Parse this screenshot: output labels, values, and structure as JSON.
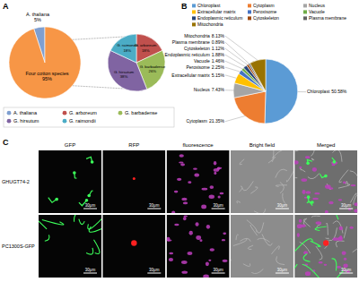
{
  "chart_data": [
    {
      "type": "pie",
      "title": "A",
      "categories": [
        "A. thaliana",
        "Four cotton species"
      ],
      "values": [
        5,
        95
      ],
      "value_labels": [
        "5%",
        "95%"
      ],
      "colors": [
        "#7f9fd0",
        "#f79646"
      ],
      "data_labels": true,
      "legend": "bottom"
    },
    {
      "type": "pie",
      "categories": [
        "G. arboreum",
        "G. barbadense",
        "G. hirsutum",
        "G. raimondii"
      ],
      "values": [
        18,
        26,
        38,
        18
      ],
      "value_labels": [
        "18%",
        "26%",
        "38%",
        "18%"
      ],
      "colors": [
        "#c0504d",
        "#9bbb59",
        "#8064a2",
        "#4bacc6"
      ],
      "data_labels": true
    },
    {
      "type": "pie",
      "title": "B",
      "categories": [
        "Chloroplast",
        "Cytoplasm",
        "Nucleus",
        "Extracellular matrix",
        "Peroxisome",
        "Vacuole",
        "Endoplasmic reticulum",
        "Cytoskeleton",
        "Plasma membrane",
        "Mitochondria"
      ],
      "values": [
        50.58,
        21.35,
        7.43,
        5.15,
        2.25,
        1.46,
        1.88,
        1.12,
        0.89,
        8.13
      ],
      "value_labels": [
        "50.58%",
        "21.35%",
        "7.43%",
        "5.15%",
        "2.25%",
        "1.46%",
        "1.88%",
        "1.12%",
        "0.89%",
        "8.13%"
      ],
      "colors": [
        "#5b9bd5",
        "#ed7d31",
        "#a5a5a5",
        "#ffc000",
        "#4472c4",
        "#70ad47",
        "#264478",
        "#9e480e",
        "#636363",
        "#997300"
      ],
      "data_labels": true,
      "legend": "top"
    }
  ],
  "micrograph": {
    "title": "C",
    "columns": [
      "GFP",
      "RFP",
      "fluorescence",
      "Bright field",
      "Merged"
    ],
    "rows": [
      "GHUGT74-2",
      "PC1300S-GFP"
    ],
    "scale_bar": "30μm"
  }
}
